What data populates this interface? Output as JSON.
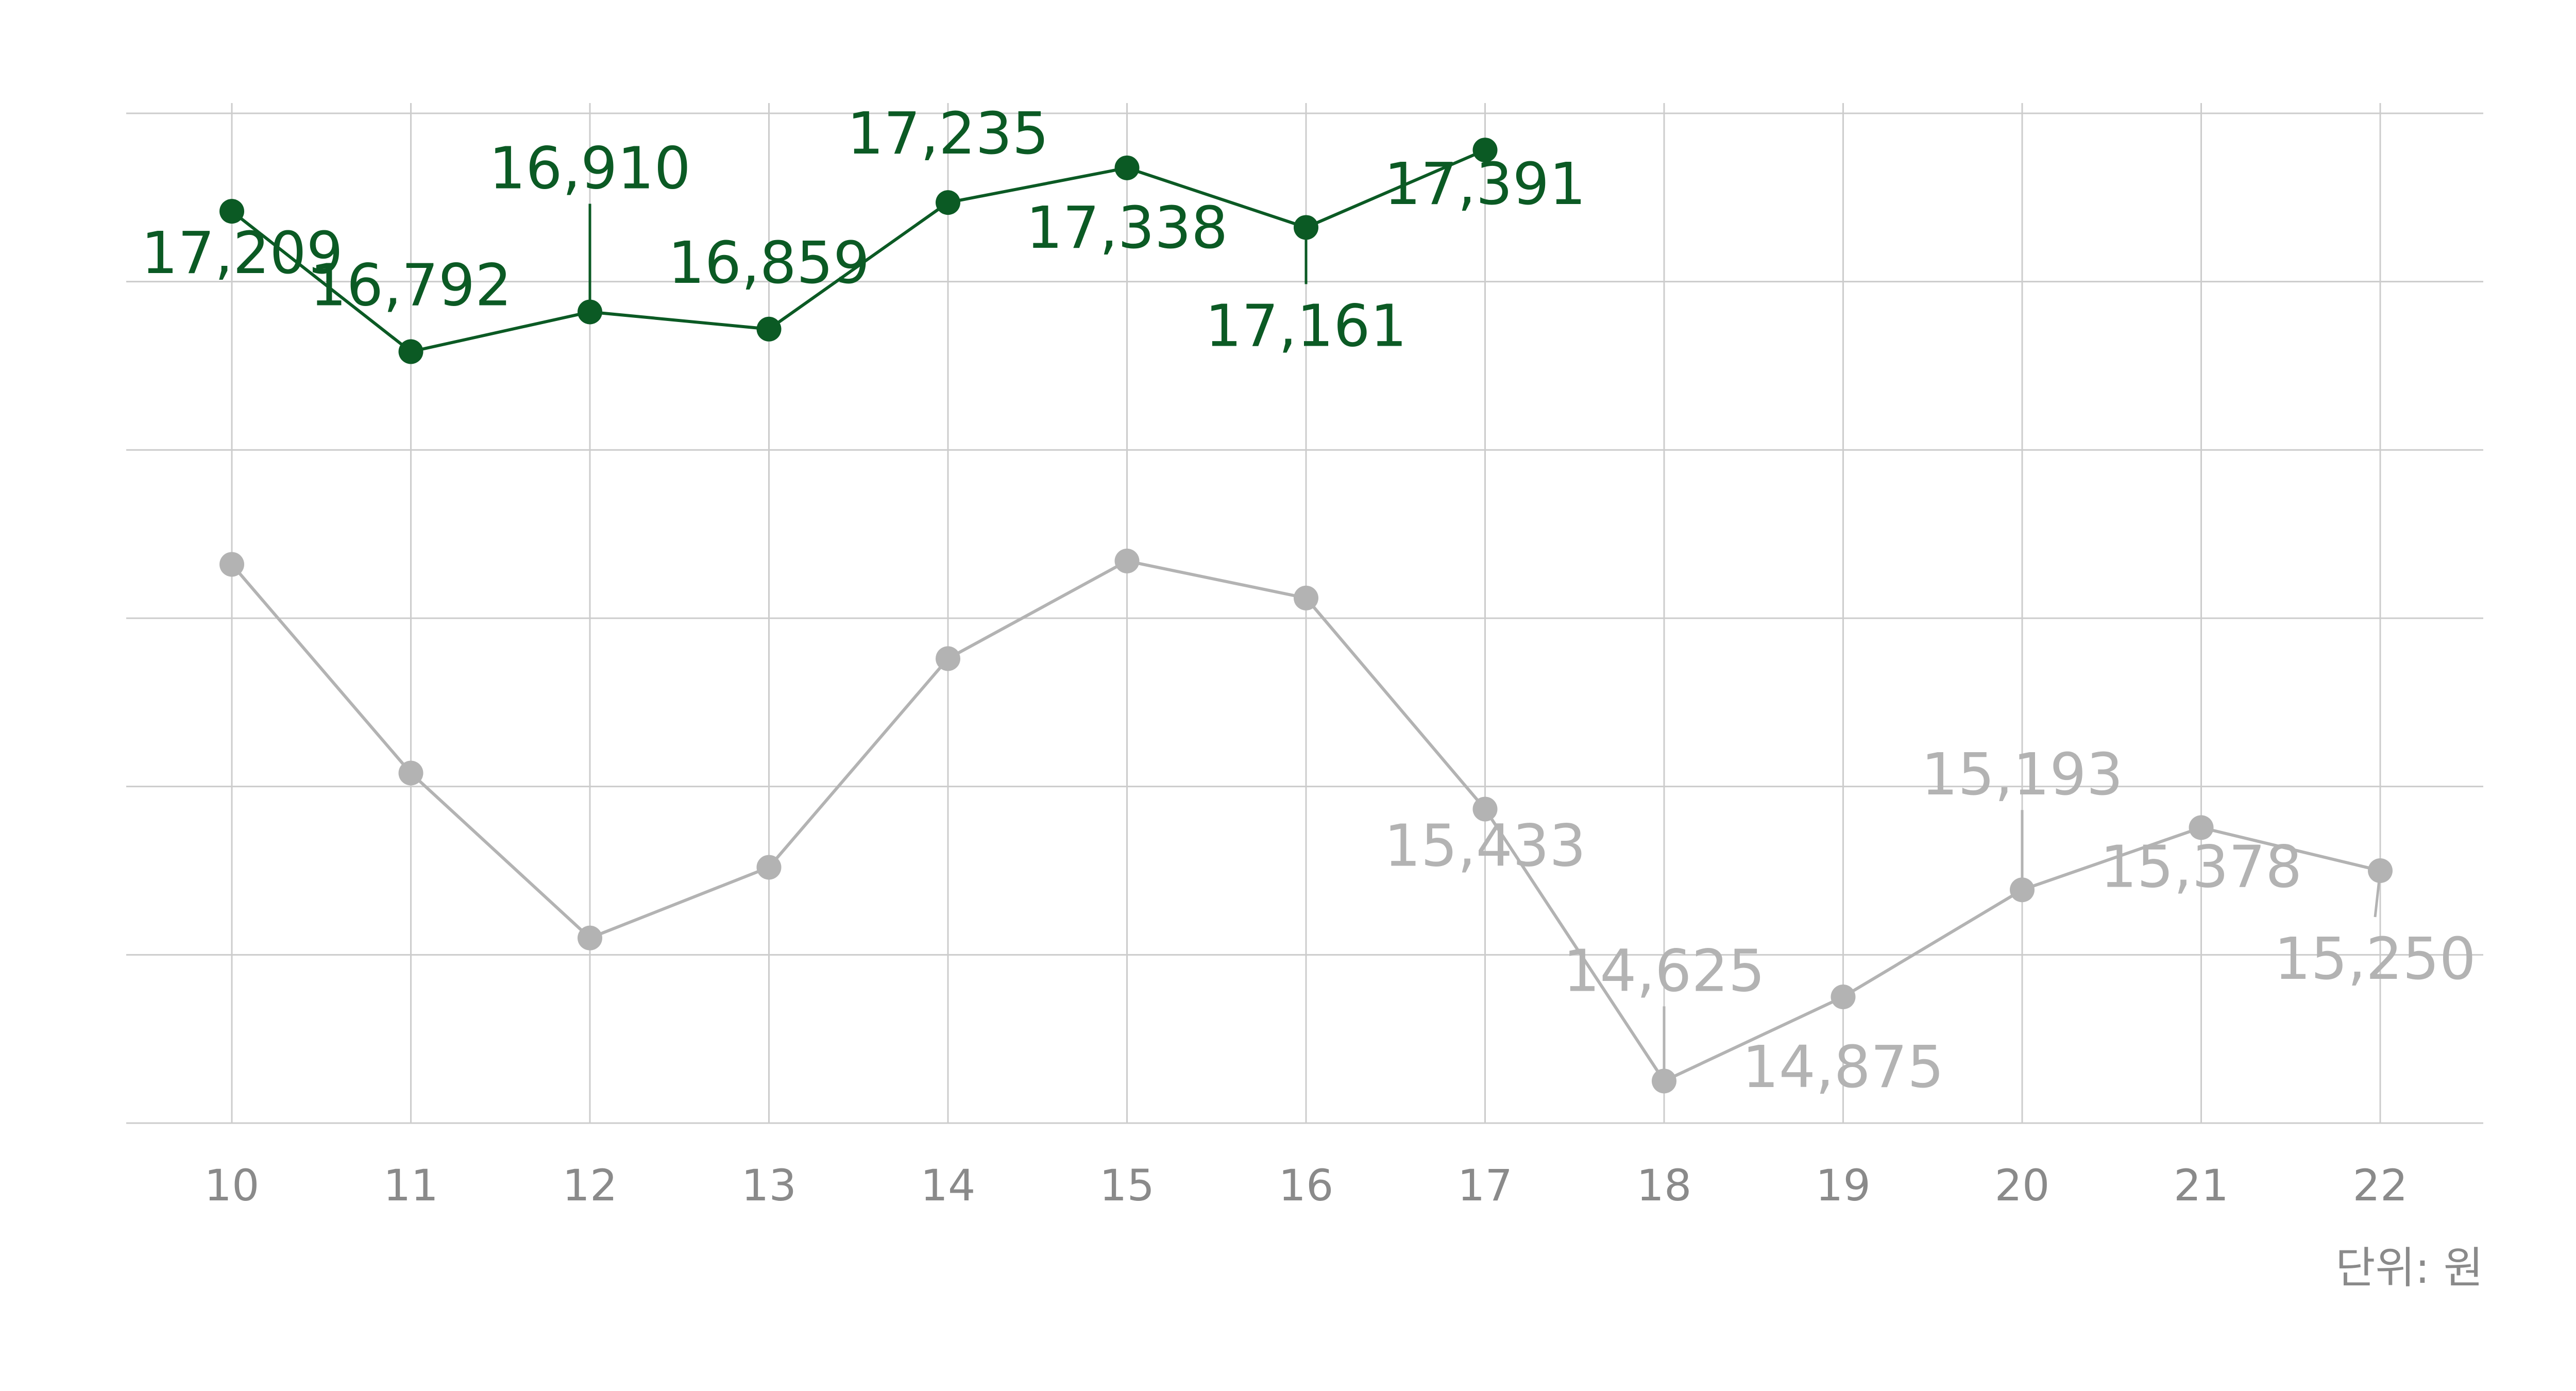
{
  "chart_data": {
    "type": "line",
    "categories": [
      "10",
      "11",
      "12",
      "13",
      "14",
      "15",
      "16",
      "17",
      "18",
      "19",
      "20",
      "21",
      "22"
    ],
    "ylim": [
      14500,
      17500
    ],
    "grid": true,
    "unit_label": "단위: 원",
    "series": [
      {
        "color": "#0b5a24",
        "values": [
          17209,
          16792,
          16910,
          16859,
          17235,
          17338,
          17161,
          17391,
          null,
          null,
          null,
          null,
          null
        ],
        "labels": [
          "17,209",
          "16,792",
          "16,910",
          "16,859",
          "17,235",
          "17,338",
          "17,161",
          "17,391",
          null,
          null,
          null,
          null,
          null
        ]
      },
      {
        "color": "#b3b3b3",
        "values": [
          16160,
          15540,
          15050,
          15260,
          15880,
          16170,
          16060,
          15433,
          14625,
          14875,
          15193,
          15378,
          15250
        ],
        "labels": [
          null,
          null,
          null,
          null,
          null,
          null,
          null,
          "15,433",
          "14,625",
          "14,875",
          "15,193",
          "15,378",
          "15,250"
        ]
      }
    ]
  }
}
